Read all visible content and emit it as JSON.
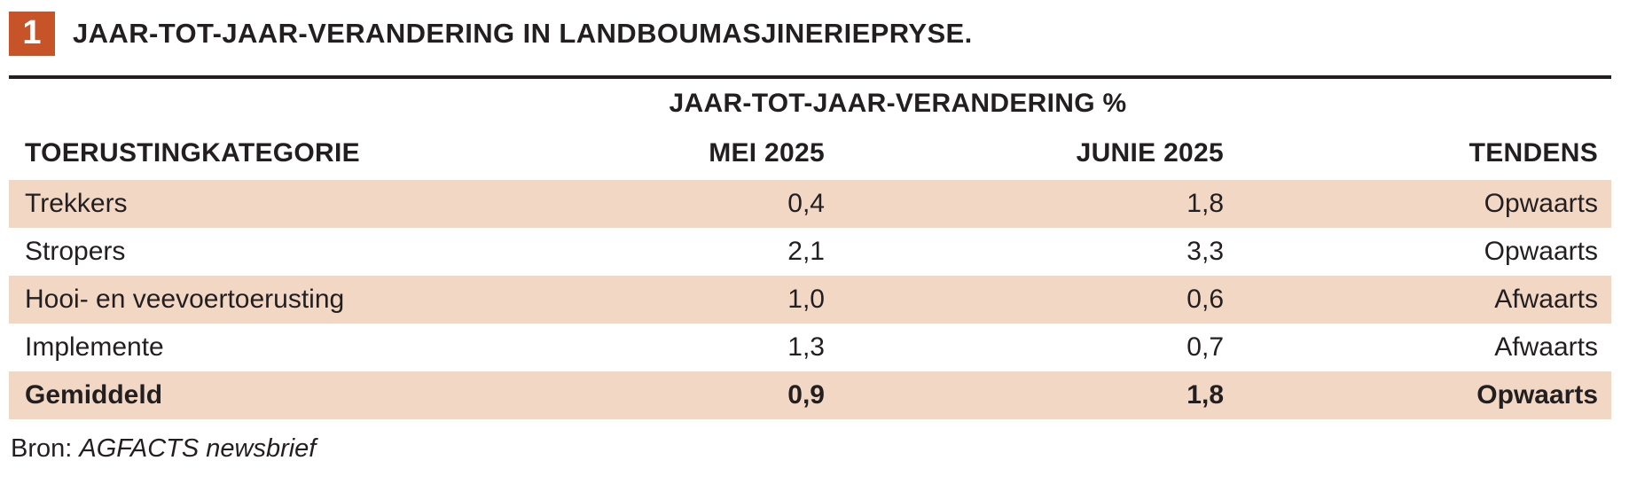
{
  "figure": {
    "number": "1",
    "title": "JAAR-TOT-JAAR-VERANDERING IN LANDBOUMASJINERIEPRYSE."
  },
  "table": {
    "span_header": "JAAR-TOT-JAAR-VERANDERING %",
    "columns": {
      "category": "TOERUSTINGKATEGORIE",
      "mei": "MEI 2025",
      "junie": "JUNIE 2025",
      "tendens": "TENDENS"
    },
    "rows": [
      {
        "category": "Trekkers",
        "mei": "0,4",
        "junie": "1,8",
        "tendens": "Opwaarts"
      },
      {
        "category": "Stropers",
        "mei": "2,1",
        "junie": "3,3",
        "tendens": "Opwaarts"
      },
      {
        "category": "Hooi- en veevoertoerusting",
        "mei": "1,0",
        "junie": "0,6",
        "tendens": "Afwaarts"
      },
      {
        "category": "Implemente",
        "mei": "1,3",
        "junie": "0,7",
        "tendens": "Afwaarts"
      },
      {
        "category": "Gemiddeld",
        "mei": "0,9",
        "junie": "1,8",
        "tendens": "Opwaarts"
      }
    ]
  },
  "source": {
    "label": "Bron:",
    "name": "AGFACTS newsbrief"
  },
  "colors": {
    "accent_orange": "#c75429",
    "row_shade": "#f3d7c5",
    "text": "#231f20"
  },
  "chart_data": {
    "type": "table",
    "title": "JAAR-TOT-JAAR-VERANDERING IN LANDBOUMASJINERIEPRYSE.",
    "group_header": "JAAR-TOT-JAAR-VERANDERING %",
    "columns": [
      "TOERUSTINGKATEGORIE",
      "MEI 2025",
      "JUNIE 2025",
      "TENDENS"
    ],
    "rows": [
      [
        "Trekkers",
        0.4,
        1.8,
        "Opwaarts"
      ],
      [
        "Stropers",
        2.1,
        3.3,
        "Opwaarts"
      ],
      [
        "Hooi- en veevoertoerusting",
        1.0,
        0.6,
        "Afwaarts"
      ],
      [
        "Implemente",
        1.3,
        0.7,
        "Afwaarts"
      ],
      [
        "Gemiddeld",
        0.9,
        1.8,
        "Opwaarts"
      ]
    ],
    "notes": "Decimal comma notation; shaded rows alternate; final row is the average (bold).",
    "source": "Bron: AGFACTS newsbrief"
  }
}
